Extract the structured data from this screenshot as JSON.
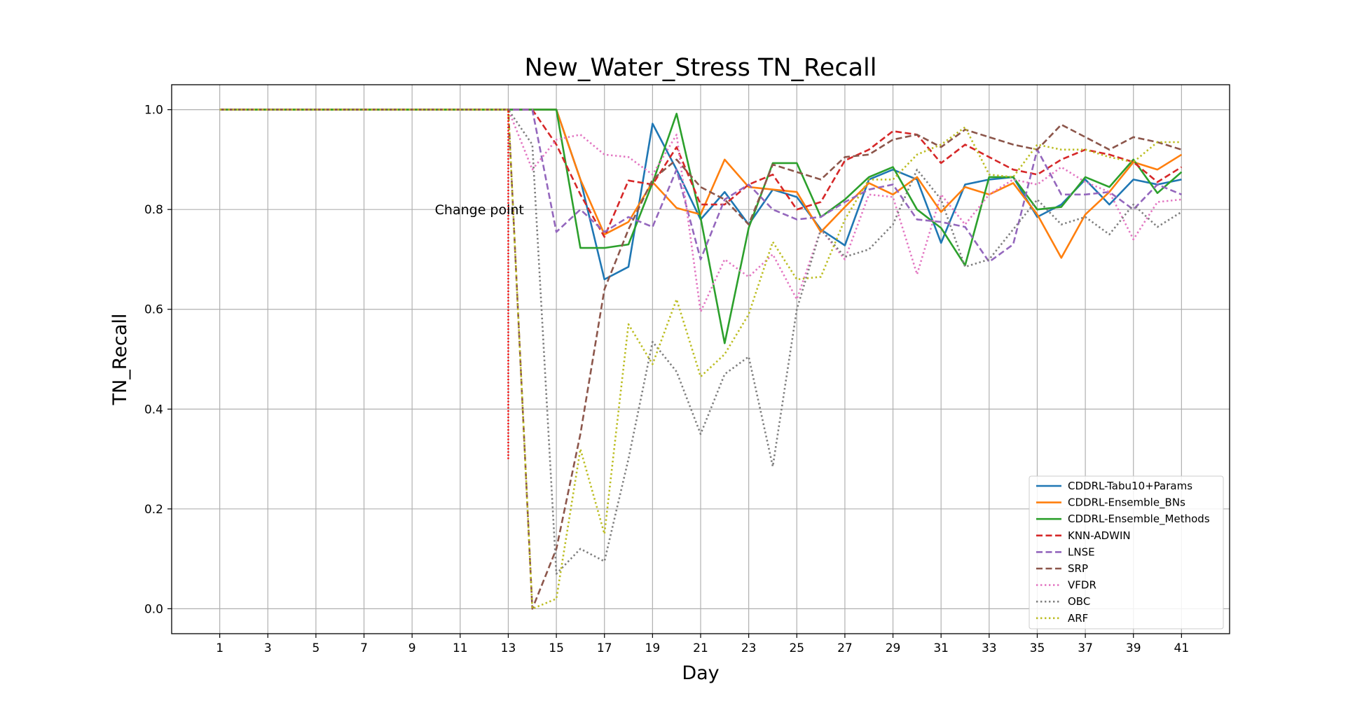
{
  "chart_data": {
    "type": "line",
    "title": "New_Water_Stress TN_Recall",
    "xlabel": "Day",
    "ylabel": "TN_Recall",
    "xlim": [
      -1,
      43
    ],
    "ylim": [
      -0.05,
      1.05
    ],
    "x_ticks": [
      1,
      3,
      5,
      7,
      9,
      11,
      13,
      15,
      17,
      19,
      21,
      23,
      25,
      27,
      29,
      31,
      33,
      35,
      37,
      39,
      41
    ],
    "y_ticks": [
      0.0,
      0.2,
      0.4,
      0.6,
      0.8,
      1.0
    ],
    "y_tick_labels": [
      "0.0",
      "0.2",
      "0.4",
      "0.6",
      "0.8",
      "1.0"
    ],
    "grid": true,
    "legend_position": "lower right",
    "x": [
      1,
      2,
      3,
      4,
      5,
      6,
      7,
      8,
      9,
      10,
      11,
      12,
      13,
      14,
      15,
      16,
      17,
      18,
      19,
      20,
      21,
      22,
      23,
      24,
      25,
      26,
      27,
      28,
      29,
      30,
      31,
      32,
      33,
      34,
      35,
      36,
      37,
      38,
      39,
      40,
      41
    ],
    "annotation": {
      "text": "Change point",
      "x": 11.8,
      "y": 0.8
    },
    "change_point": {
      "x": 13,
      "y_from": 0.3,
      "y_to": 1.0,
      "color": "#ff0000"
    },
    "series": [
      {
        "name": "CDDRL-Tabu10+Params",
        "color": "#1f77b4",
        "style": "solid",
        "values": [
          1,
          1,
          1,
          1,
          1,
          1,
          1,
          1,
          1,
          1,
          1,
          1,
          1,
          1,
          1,
          0.86,
          0.66,
          0.685,
          0.972,
          0.88,
          0.78,
          0.835,
          0.77,
          0.84,
          0.825,
          0.76,
          0.728,
          0.86,
          0.88,
          0.86,
          0.733,
          0.85,
          0.86,
          0.865,
          0.785,
          0.81,
          0.86,
          0.81,
          0.86,
          0.85,
          0.86
        ]
      },
      {
        "name": "CDDRL-Ensemble_BNs",
        "color": "#ff7f0e",
        "style": "solid",
        "values": [
          1,
          1,
          1,
          1,
          1,
          1,
          1,
          1,
          1,
          1,
          1,
          1,
          1,
          1,
          1,
          0.86,
          0.75,
          0.775,
          0.855,
          0.803,
          0.79,
          0.9,
          0.845,
          0.84,
          0.835,
          0.755,
          0.805,
          0.853,
          0.83,
          0.865,
          0.795,
          0.845,
          0.83,
          0.853,
          0.79,
          0.703,
          0.79,
          0.835,
          0.895,
          0.88,
          0.91
        ]
      },
      {
        "name": "CDDRL-Ensemble_Methods",
        "color": "#2ca02c",
        "style": "solid",
        "values": [
          1,
          1,
          1,
          1,
          1,
          1,
          1,
          1,
          1,
          1,
          1,
          1,
          1,
          1,
          1,
          0.723,
          0.723,
          0.73,
          0.853,
          0.992,
          0.783,
          0.532,
          0.763,
          0.893,
          0.893,
          0.785,
          0.82,
          0.865,
          0.885,
          0.8,
          0.763,
          0.688,
          0.865,
          0.865,
          0.8,
          0.805,
          0.865,
          0.845,
          0.9,
          0.833,
          0.875
        ]
      },
      {
        "name": "KNN-ADWIN",
        "color": "#d62728",
        "style": "dashed",
        "values": [
          1,
          1,
          1,
          1,
          1,
          1,
          1,
          1,
          1,
          1,
          1,
          1,
          1,
          1,
          0.93,
          0.83,
          0.745,
          0.858,
          0.85,
          0.925,
          0.81,
          0.81,
          0.85,
          0.87,
          0.8,
          0.815,
          0.898,
          0.92,
          0.957,
          0.95,
          0.893,
          0.93,
          0.905,
          0.88,
          0.87,
          0.9,
          0.92,
          0.91,
          0.895,
          0.855,
          0.885
        ]
      },
      {
        "name": "LNSE",
        "color": "#9467bd",
        "style": "dashed",
        "values": [
          1,
          1,
          1,
          1,
          1,
          1,
          1,
          1,
          1,
          1,
          1,
          1,
          1,
          1,
          0.755,
          0.8,
          0.755,
          0.785,
          0.765,
          0.88,
          0.7,
          0.82,
          0.85,
          0.8,
          0.78,
          0.785,
          0.815,
          0.84,
          0.85,
          0.78,
          0.775,
          0.765,
          0.695,
          0.73,
          0.92,
          0.83,
          0.83,
          0.835,
          0.8,
          0.85,
          0.83
        ]
      },
      {
        "name": "SRP",
        "color": "#8c564b",
        "style": "dashed",
        "values": [
          1,
          1,
          1,
          1,
          1,
          1,
          1,
          1,
          1,
          1,
          1,
          1,
          1,
          0,
          0.12,
          0.35,
          0.64,
          0.76,
          0.86,
          0.9,
          0.845,
          0.82,
          0.77,
          0.89,
          0.875,
          0.86,
          0.905,
          0.91,
          0.94,
          0.95,
          0.925,
          0.96,
          0.945,
          0.93,
          0.92,
          0.97,
          0.945,
          0.92,
          0.945,
          0.935,
          0.92
        ]
      },
      {
        "name": "VFDR",
        "color": "#e377c2",
        "style": "dotted",
        "values": [
          1,
          1,
          1,
          1,
          1,
          1,
          1,
          1,
          1,
          1,
          1,
          1,
          1,
          0.88,
          0.94,
          0.95,
          0.91,
          0.905,
          0.87,
          0.95,
          0.595,
          0.7,
          0.665,
          0.71,
          0.62,
          0.76,
          0.7,
          0.83,
          0.825,
          0.67,
          0.83,
          0.77,
          0.83,
          0.86,
          0.85,
          0.885,
          0.855,
          0.835,
          0.74,
          0.815,
          0.82
        ]
      },
      {
        "name": "OBC",
        "color": "#7f7f7f",
        "style": "dotted",
        "values": [
          1,
          1,
          1,
          1,
          1,
          1,
          1,
          1,
          1,
          1,
          1,
          1,
          1,
          0.93,
          0.07,
          0.12,
          0.095,
          0.3,
          0.535,
          0.475,
          0.35,
          0.47,
          0.505,
          0.285,
          0.6,
          0.76,
          0.705,
          0.72,
          0.77,
          0.88,
          0.82,
          0.685,
          0.7,
          0.76,
          0.82,
          0.77,
          0.785,
          0.75,
          0.81,
          0.765,
          0.795
        ]
      },
      {
        "name": "ARF",
        "color": "#bcbd22",
        "style": "dotted",
        "values": [
          1,
          1,
          1,
          1,
          1,
          1,
          1,
          1,
          1,
          1,
          1,
          1,
          1,
          0,
          0.02,
          0.32,
          0.15,
          0.57,
          0.49,
          0.62,
          0.465,
          0.51,
          0.59,
          0.735,
          0.66,
          0.665,
          0.78,
          0.86,
          0.86,
          0.91,
          0.93,
          0.965,
          0.87,
          0.865,
          0.93,
          0.92,
          0.92,
          0.905,
          0.895,
          0.935,
          0.935
        ]
      }
    ]
  }
}
